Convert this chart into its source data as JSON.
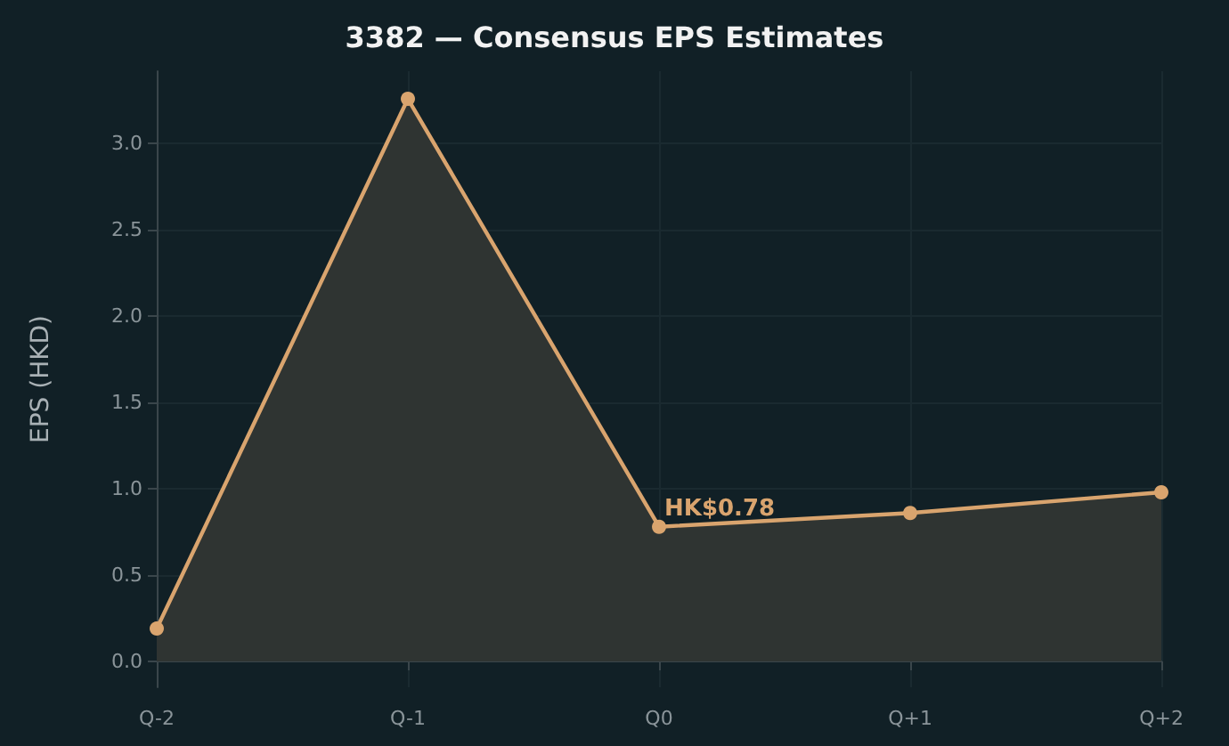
{
  "chart_data": {
    "type": "area",
    "title": "3382 — Consensus EPS Estimates",
    "ylabel": "EPS (HKD)",
    "categories": [
      "Q-2",
      "Q-1",
      "Q0",
      "Q+1",
      "Q+2"
    ],
    "series": [
      {
        "color": "#d9a46e",
        "values": [
          0.19,
          3.26,
          0.78,
          0.86,
          0.98
        ]
      }
    ],
    "ylim": [
      -0.15,
      3.42
    ],
    "yticks": [
      {
        "value": 0,
        "label": "0.0"
      },
      0.5,
      {
        "value": 1,
        "label": "1.0"
      },
      1.5,
      {
        "value": 2,
        "label": "2.0"
      },
      2.5,
      {
        "value": 3,
        "label": "3.0"
      }
    ],
    "annotations": [
      {
        "text": "HK$0.78",
        "x": "Q0",
        "y": 0.78
      }
    ],
    "grid": true,
    "marker": "circle",
    "line_style": "solid"
  }
}
